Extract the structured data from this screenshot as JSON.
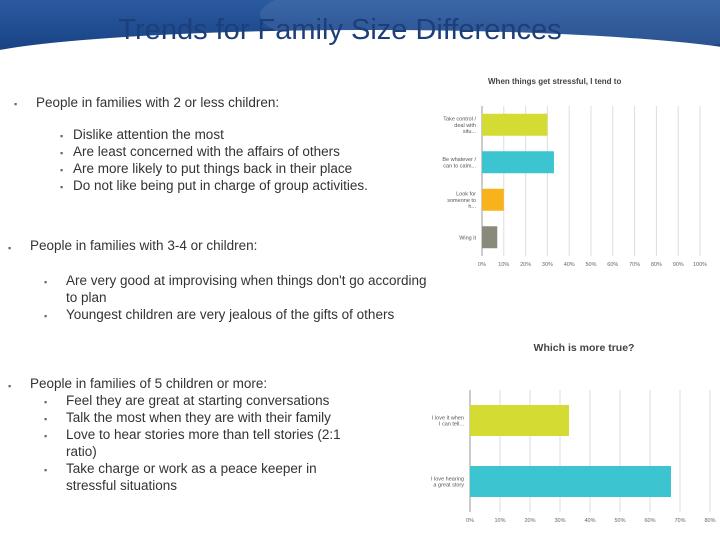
{
  "slide": {
    "title": "Trends for Family Size Differences",
    "groups": [
      {
        "heading": "People in families with 2 or less children:",
        "items": [
          "Dislike attention the most",
          "Are least concerned with the affairs of others",
          "Are more likely to put things back in their place",
          "Do not like being put in charge of group activities."
        ]
      },
      {
        "heading": "People in families with 3-4 or children:",
        "items": [
          "Are very good at improvising when things don't go according to plan",
          "Youngest children are very jealous of the gifts of others"
        ]
      },
      {
        "heading": "People in families of 5 children or more:",
        "items": [
          "Feel they are great at starting conversations",
          "Talk the most when they are with their family",
          "Love to hear stories more than tell stories (2:1 ratio)",
          "Take charge or work as a peace keeper in stressful situations"
        ]
      }
    ]
  },
  "colors": {
    "header": "#1e4a8e",
    "title": "#1c3f7a",
    "yellow": "#d4dc34",
    "teal": "#3cc4d0",
    "orange": "#f7b21c",
    "gray": "#8a8a7a",
    "grid": "#dddddd"
  },
  "chart_data": [
    {
      "type": "bar",
      "orientation": "horizontal",
      "title": "When things get stressful, I tend to",
      "categories": [
        "Take control / deal with situ...",
        "Be whatever / can to calm...",
        "Look for someone to h...",
        "Wing it"
      ],
      "values": [
        30,
        33,
        10,
        7
      ],
      "colors": [
        "#d4dc34",
        "#3cc4d0",
        "#f7b21c",
        "#8a8a7a"
      ],
      "xlim": [
        0,
        100
      ],
      "x_ticks": [
        "0%",
        "10%",
        "20%",
        "30%",
        "40%",
        "50%",
        "60%",
        "70%",
        "80%",
        "90%",
        "100%"
      ],
      "grid": true
    },
    {
      "type": "bar",
      "orientation": "horizontal",
      "title": "Which is more true?",
      "categories": [
        "I love it when I can tell...",
        "I love hearing a great story"
      ],
      "values": [
        33,
        67
      ],
      "colors": [
        "#d4dc34",
        "#3cc4d0"
      ],
      "xlim": [
        0,
        80
      ],
      "x_ticks": [
        "0%",
        "10%",
        "20%",
        "30%",
        "40%",
        "50%",
        "60%",
        "70%",
        "80%"
      ],
      "grid": true
    }
  ]
}
